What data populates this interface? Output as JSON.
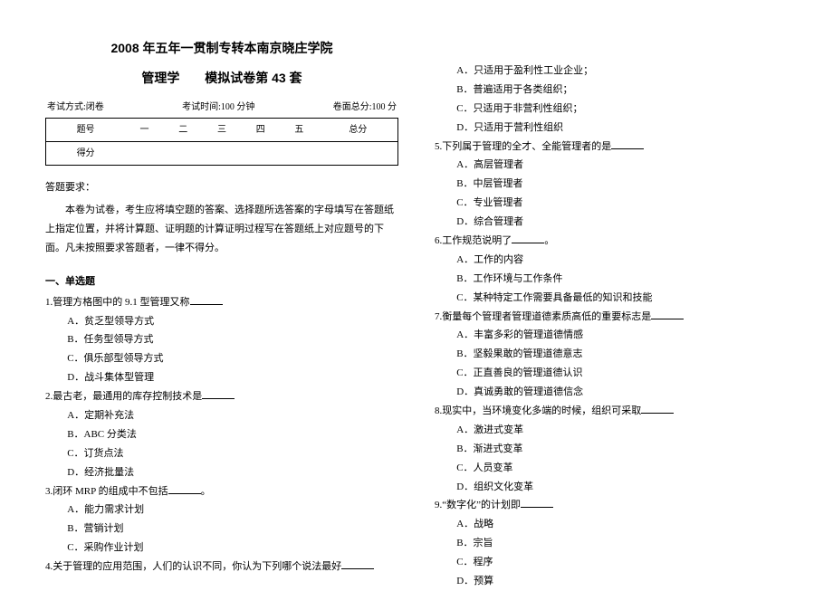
{
  "header": {
    "title_main": "2008 年五年一贯制专转本南京晓庄学院",
    "subject": "管理学",
    "paper_label": "模拟试卷第 43 套",
    "exam_mode_label": "考试方式:闭卷",
    "exam_time_label": "考试时间:100 分钟",
    "total_score_label": "卷面总分:100 分"
  },
  "score_table": {
    "row1": [
      "题号",
      "一",
      "二",
      "三",
      "四",
      "五",
      "总分"
    ],
    "row2": [
      "得分",
      "",
      "",
      "",
      "",
      "",
      ""
    ]
  },
  "requirements": {
    "title": "答题要求：",
    "body": "本卷为试卷，考生应将填空题的答案、选择题所选答案的字母填写在答题纸上指定位置，并将计算题、证明题的计算证明过程写在答题纸上对应题号的下面。凡未按照要求答题者，一律不得分。"
  },
  "section1_title": "一、单选题",
  "questions_left": [
    {
      "stem": "1.管理方格图中的 9.1 型管理又称",
      "blank": true,
      "opts": [
        "A．贫乏型领导方式",
        "B．任务型领导方式",
        "C．俱乐部型领导方式",
        "D．战斗集体型管理"
      ]
    },
    {
      "stem": "2.最古老，最通用的库存控制技术是",
      "blank": true,
      "opts": [
        "A．定期补充法",
        "B．ABC 分类法",
        "C．订货点法",
        "D．经济批量法"
      ]
    },
    {
      "stem": "3.闭环 MRP 的组成中不包括",
      "blank": true,
      "suffix": "。",
      "opts": [
        "A．能力需求计划",
        "B．营销计划",
        "C．采购作业计划"
      ]
    },
    {
      "stem": "4.关于管理的应用范围，人们的认识不同，你认为下列哪个说法最好",
      "blank": true,
      "opts": []
    }
  ],
  "questions_right": [
    {
      "opts": [
        "A．只适用于盈利性工业企业；",
        "B．普遍适用于各类组织；",
        "C．只适用于非营利性组织；",
        "D．只适用于营利性组织"
      ]
    },
    {
      "stem": "5.下列属于管理的全才、全能管理者的是",
      "blank": true,
      "opts": [
        "A．高层管理者",
        "B．中层管理者",
        "C．专业管理者",
        "D．综合管理者"
      ]
    },
    {
      "stem": "6.工作规范说明了",
      "blank": true,
      "suffix": "。",
      "opts": [
        "A．工作的内容",
        "B．工作环境与工作条件",
        "C．某种特定工作需要具备最低的知识和技能"
      ]
    },
    {
      "stem": "7.衡量每个管理者管理道德素质高低的重要标志是",
      "blank": true,
      "opts": [
        "A．丰富多彩的管理道德情感",
        "B．坚毅果敢的管理道德意志",
        "C．正直善良的管理道德认识",
        "D．真诚勇敢的管理道德信念"
      ]
    },
    {
      "stem": "8.现实中，当环境变化多端的时候，组织可采取",
      "blank": true,
      "opts": [
        "A．激进式变革",
        "B．渐进式变革",
        "C．人员变革",
        "D．组织文化变革"
      ]
    },
    {
      "stem": "9.“数字化”的计划即",
      "blank": true,
      "opts": [
        "A．战略",
        "B．宗旨",
        "C．程序",
        "D．预算"
      ]
    }
  ]
}
